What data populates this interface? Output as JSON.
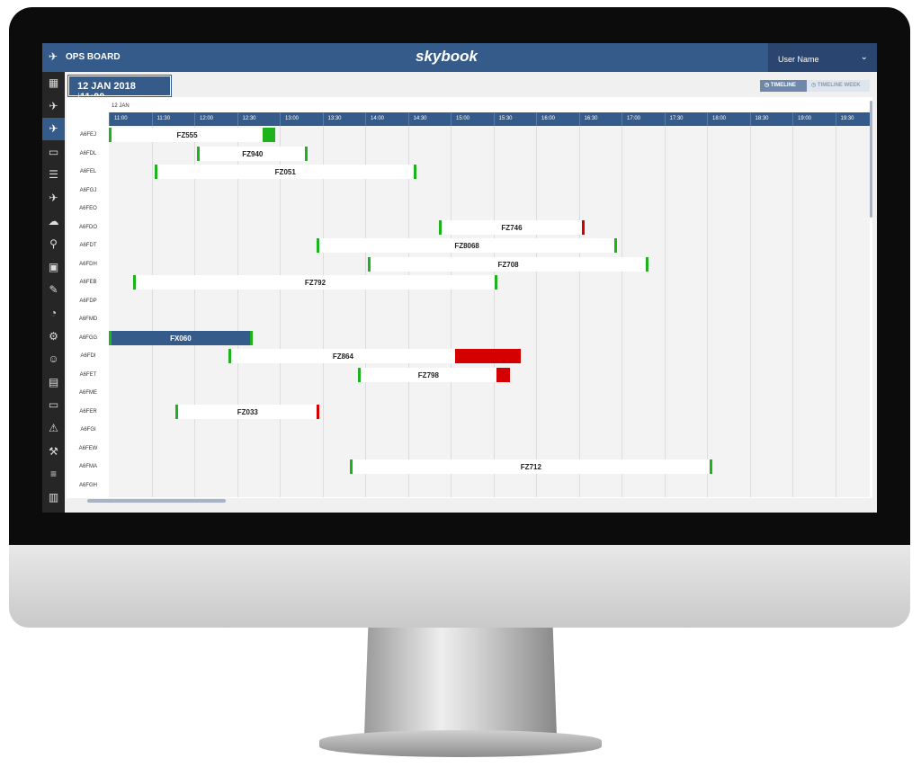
{
  "header": {
    "title": "OPS BOARD",
    "logo": "skybook",
    "user": "User Name",
    "menu_icon": "chevron-down-icon"
  },
  "datebar": {
    "date": "12 JAN 2018",
    "time": "11:00"
  },
  "view_toggle": [
    {
      "label": "TIMELINE",
      "active": true
    },
    {
      "label": "TIMELINE WEEK",
      "active": false
    }
  ],
  "sidebar": {
    "icons": [
      "grid-icon",
      "plane-icon",
      "ops-board-icon",
      "monitor-icon",
      "list-icon",
      "plane-tools-icon",
      "weather-icon",
      "pin-icon",
      "safe-icon",
      "clipboard-icon",
      "gauge-icon",
      "settings-icon",
      "user-icon",
      "document-icon",
      "devices-icon",
      "warning-icon",
      "maintenance-icon",
      "sliders-icon",
      "briefcase-icon"
    ],
    "active": 2
  },
  "timeline": {
    "day": "12 JAN",
    "times": [
      "11:00",
      "11:30",
      "12:00",
      "12:30",
      "13:00",
      "13:30",
      "14:00",
      "14:30",
      "15:00",
      "15:30",
      "16:00",
      "16:30",
      "17:00",
      "17:30",
      "18:00",
      "18:30",
      "19:00",
      "19:30"
    ]
  },
  "colors": {
    "primary": "#355b8b",
    "on_time": "#1db31d",
    "late": "#d40000"
  },
  "aircraft": [
    "A6FEJ",
    "A6FDL",
    "A6FEL",
    "A6FGJ",
    "A6FEO",
    "A6FDO",
    "A6FDT",
    "A6FDH",
    "A6FEB",
    "A6FDP",
    "A6FMD",
    "A6FGG",
    "A6FDI",
    "A6FET",
    "A6FME",
    "A6FER",
    "A6FGI",
    "A6FEW",
    "A6FMA",
    "A6FGH"
  ],
  "flights": [
    {
      "row": 0,
      "flight": "FZ555",
      "start": "11:00",
      "end": "12:48",
      "end_status": "on_time",
      "delay_end": "12:57",
      "delay_status": "on_time"
    },
    {
      "row": 1,
      "flight": "FZ940",
      "start": "12:02",
      "end": "13:18",
      "end_status": "on_time"
    },
    {
      "row": 2,
      "flight": "FZ051",
      "start": "11:32",
      "end": "14:34",
      "end_status": "on_time"
    },
    {
      "row": 5,
      "flight": "FZ746",
      "start": "14:52",
      "end": "16:32",
      "end_status": "late"
    },
    {
      "row": 6,
      "flight": "FZ8068",
      "start": "13:26",
      "end": "16:55",
      "end_status": "on_time"
    },
    {
      "row": 7,
      "flight": "FZ708",
      "start": "14:02",
      "end": "17:17",
      "end_status": "on_time"
    },
    {
      "row": 8,
      "flight": "FZ792",
      "start": "11:17",
      "end": "15:31",
      "end_status": "on_time"
    },
    {
      "row": 11,
      "flight": "FX060",
      "start": "11:00",
      "end": "12:39",
      "end_status": "on_time",
      "selected": true
    },
    {
      "row": 12,
      "flight": "FZ864",
      "start": "12:24",
      "end": "15:03",
      "end_status": "none",
      "delay_end": "15:49",
      "delay_status": "late"
    },
    {
      "row": 13,
      "flight": "FZ798",
      "start": "13:55",
      "end": "15:32",
      "end_status": "none",
      "delay_end": "15:42",
      "delay_status": "late"
    },
    {
      "row": 15,
      "flight": "FZ033",
      "start": "11:47",
      "end": "13:26",
      "end_status": "late"
    },
    {
      "row": 18,
      "flight": "FZ712",
      "start": "13:49",
      "end": "18:02",
      "end_status": "on_time"
    }
  ]
}
